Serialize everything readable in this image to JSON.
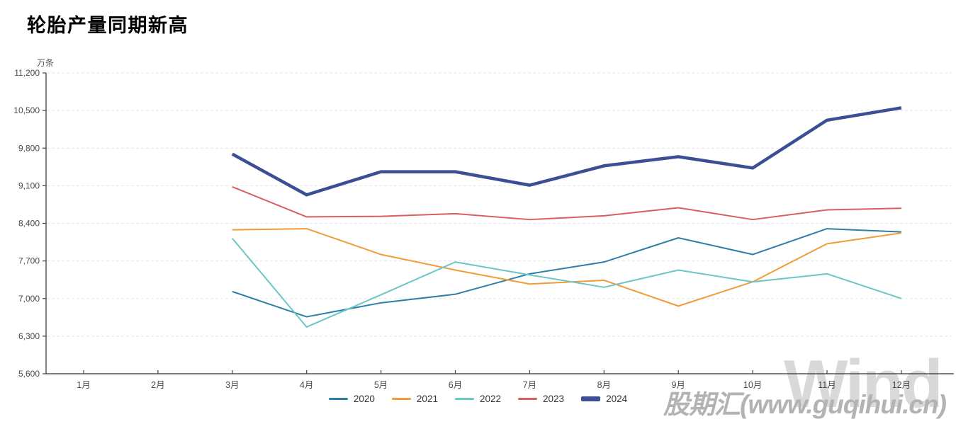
{
  "title": "轮胎产量同期新高",
  "y_axis_unit": "万条",
  "watermarks": {
    "brand": "Wind",
    "site": "股期汇(www.guqihui.cn)"
  },
  "chart_data": {
    "type": "line",
    "title": "轮胎产量同期新高",
    "ylabel": "万条",
    "xlabel": "",
    "categories": [
      "1月",
      "2月",
      "3月",
      "4月",
      "5月",
      "6月",
      "7月",
      "8月",
      "9月",
      "10月",
      "11月",
      "12月"
    ],
    "start_month_index": 2,
    "ylim": [
      5600,
      11200
    ],
    "ytick_step": 700,
    "ytick_labels": [
      "11,200",
      "10,500",
      "9,800",
      "9,100",
      "8,400",
      "7,700",
      "7,000",
      "6,300",
      "5,600"
    ],
    "grid": "horizontal-dashed",
    "legend_position": "bottom-center",
    "series": [
      {
        "name": "2020",
        "color": "#2f7ea6",
        "line_width": 2,
        "values": [
          7130,
          6660,
          6920,
          7080,
          7460,
          7680,
          8130,
          7820,
          8300,
          8240
        ]
      },
      {
        "name": "2021",
        "color": "#f29c38",
        "line_width": 2,
        "values": [
          8280,
          8300,
          7820,
          7530,
          7270,
          7340,
          6860,
          7310,
          8020,
          8220
        ]
      },
      {
        "name": "2022",
        "color": "#6cc6c6",
        "line_width": 2,
        "values": [
          8120,
          6470,
          7070,
          7680,
          7440,
          7210,
          7530,
          7310,
          7460,
          7000
        ]
      },
      {
        "name": "2023",
        "color": "#d95f5e",
        "line_width": 2,
        "values": [
          9080,
          8520,
          8530,
          8580,
          8470,
          8540,
          8690,
          8470,
          8650,
          8680
        ]
      },
      {
        "name": "2024",
        "color": "#3c4f94",
        "line_width": 4.5,
        "values": [
          9690,
          8930,
          9360,
          9360,
          9110,
          9470,
          9640,
          9430,
          10320,
          10550
        ]
      }
    ],
    "axis_color": "#3f3f3f",
    "grid_color": "#e4e4e4",
    "tick_label_color": "#4a4a4a"
  }
}
